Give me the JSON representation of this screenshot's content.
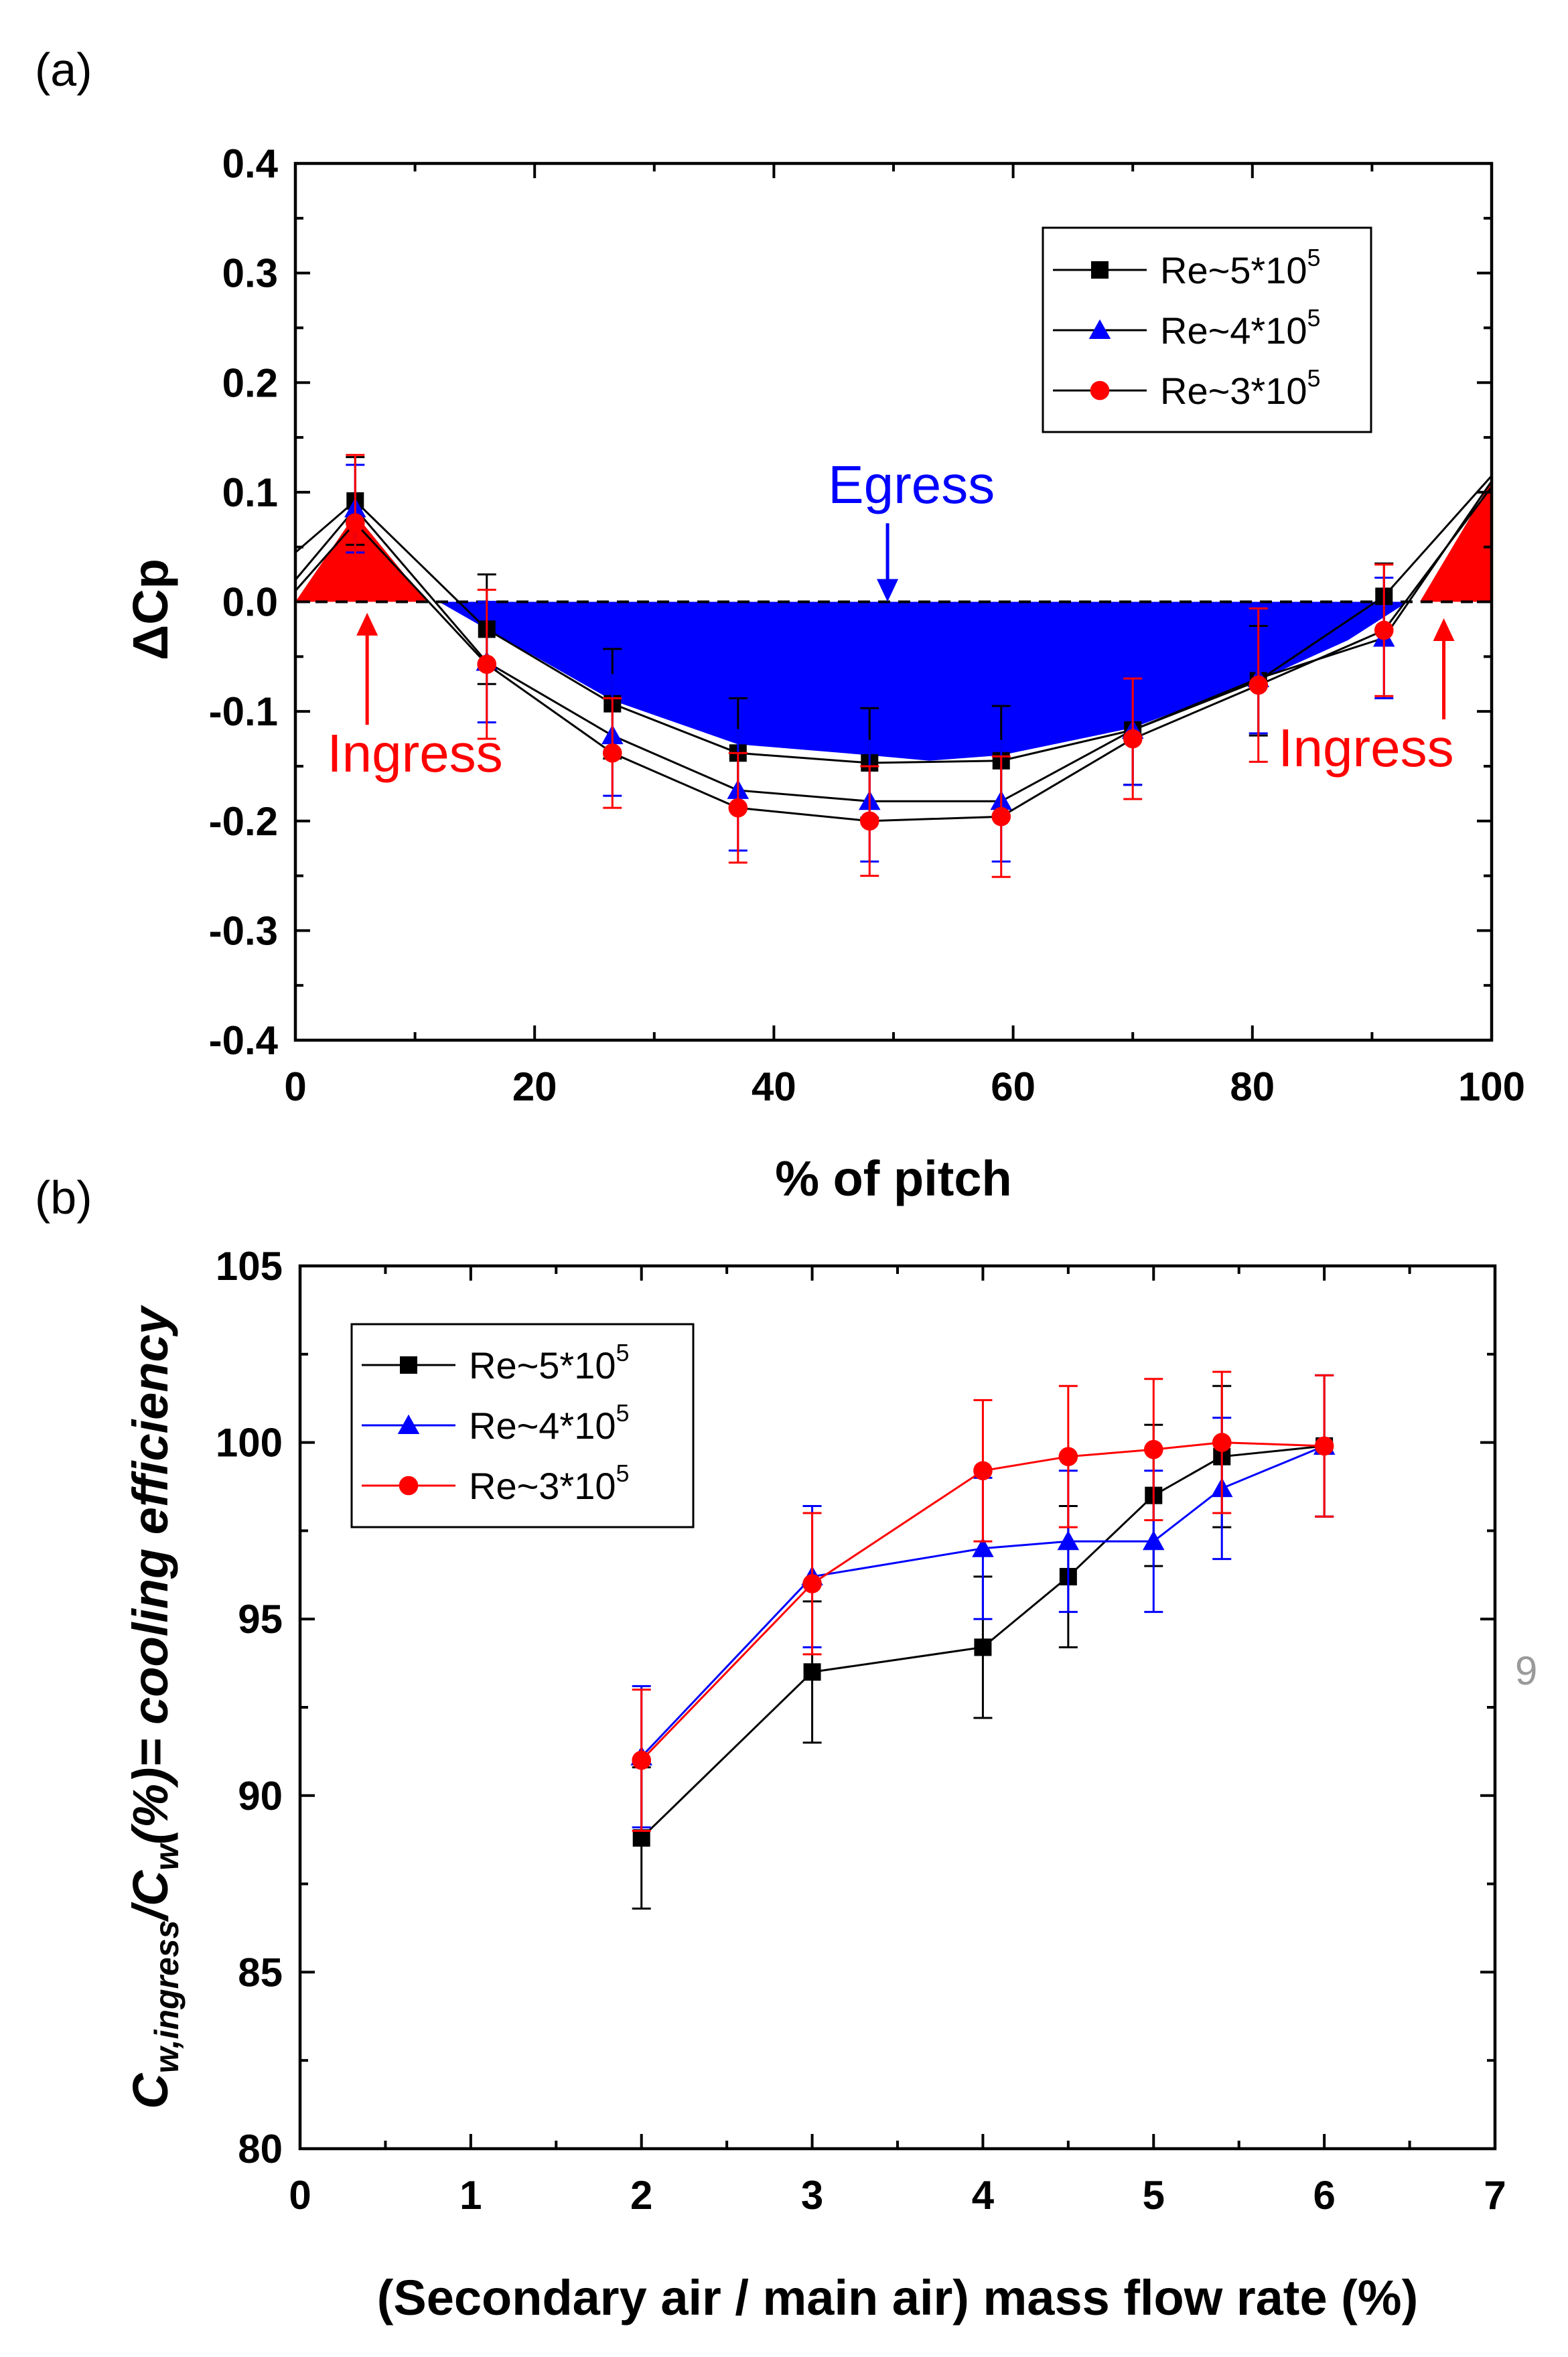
{
  "page_number": "9",
  "chart_data": [
    {
      "panel_label": "(a)",
      "type": "line",
      "xlabel": "% of pitch",
      "ylabel": "ΔCp",
      "xlim": [
        0,
        100
      ],
      "ylim": [
        -0.4,
        0.4
      ],
      "x_ticks": [
        0,
        20,
        40,
        60,
        80,
        100
      ],
      "x_tick_labels": [
        "0",
        "20",
        "40",
        "60",
        "80",
        "100"
      ],
      "y_ticks": [
        -0.4,
        -0.3,
        -0.2,
        -0.1,
        0.0,
        0.1,
        0.2,
        0.3,
        0.4
      ],
      "y_tick_labels": [
        "-0.4",
        "-0.3",
        "-0.2",
        "-0.1",
        "0.0",
        "0.1",
        "0.2",
        "0.3",
        "0.4"
      ],
      "legend_position": "top-right",
      "series": [
        {
          "name": "Re~5*10",
          "sup": "5",
          "marker": "square",
          "color": "#000000",
          "line_color": "#000000",
          "x": [
            5,
            16,
            26.5,
            37,
            48,
            59,
            70,
            80.5,
            91
          ],
          "y": [
            0.092,
            -0.025,
            -0.093,
            -0.138,
            -0.147,
            -0.145,
            -0.117,
            -0.072,
            0.005
          ],
          "err": [
            0.04,
            0.05,
            0.05,
            0.05,
            0.05,
            0.05,
            0.05,
            0.05,
            0.03
          ],
          "start": [
            0,
            0.045
          ],
          "end": [
            100,
            0.115
          ]
        },
        {
          "name": "Re~4*10",
          "sup": "5",
          "marker": "triangle",
          "color": "#0000ff",
          "line_color": "#000000",
          "x": [
            5,
            16,
            26.5,
            37,
            48,
            59,
            70,
            80.5,
            91
          ],
          "y": [
            0.085,
            -0.055,
            -0.122,
            -0.172,
            -0.182,
            -0.182,
            -0.117,
            -0.07,
            -0.033
          ],
          "err": [
            0.04,
            0.055,
            0.055,
            0.055,
            0.055,
            0.055,
            0.05,
            0.05,
            0.055
          ],
          "start": [
            0,
            0.02
          ],
          "end": [
            100,
            0.11
          ]
        },
        {
          "name": "Re~3*10",
          "sup": "5",
          "marker": "circle",
          "color": "#ff0000",
          "line_color": "#000000",
          "x": [
            5,
            16,
            26.5,
            37,
            48,
            59,
            70,
            80.5,
            91
          ],
          "y": [
            0.072,
            -0.057,
            -0.138,
            -0.188,
            -0.2,
            -0.196,
            -0.125,
            -0.076,
            -0.026
          ],
          "err": [
            0.062,
            0.068,
            0.05,
            0.05,
            0.05,
            0.055,
            0.055,
            0.07,
            0.06
          ],
          "start": [
            0,
            0.01
          ],
          "end": [
            100,
            0.105
          ]
        }
      ],
      "ingress_regions": [
        {
          "polygon": [
            [
              0,
              0
            ],
            [
              5,
              0.08
            ],
            [
              11,
              0
            ]
          ],
          "color": "#ff0000"
        },
        {
          "polygon": [
            [
              94,
              0
            ],
            [
              100,
              0.11
            ],
            [
              100,
              0
            ]
          ],
          "color": "#ff0000"
        }
      ],
      "egress_region": {
        "top": [
          [
            12,
            0
          ],
          [
            93,
            0
          ]
        ],
        "bottom": [
          [
            12,
            0
          ],
          [
            16,
            -0.025
          ],
          [
            26.5,
            -0.09
          ],
          [
            37,
            -0.13
          ],
          [
            48,
            -0.14
          ],
          [
            53,
            -0.145
          ],
          [
            59,
            -0.14
          ],
          [
            70,
            -0.115
          ],
          [
            80.5,
            -0.072
          ],
          [
            88,
            -0.035
          ],
          [
            93,
            0
          ]
        ],
        "color": "#0000ff"
      },
      "zero_line": true,
      "annotations": [
        {
          "text": "Egress",
          "color": "#0000ff",
          "arrow_to": [
            49.5,
            0.0
          ],
          "text_at": [
            51.5,
            0.09
          ]
        },
        {
          "text": "Ingress",
          "color": "#ff0000",
          "arrow_to": [
            6,
            -0.01
          ],
          "text_at": [
            10,
            -0.155
          ]
        },
        {
          "text": "Ingress",
          "color": "#ff0000",
          "arrow_to": [
            96,
            -0.015
          ],
          "text_at": [
            89.5,
            -0.15
          ]
        }
      ]
    },
    {
      "panel_label": "(b)",
      "type": "line",
      "xlabel": "(Secondary air / main air) mass flow rate (%)",
      "ylabel_parts": [
        "C",
        "w,ingress",
        "/C",
        "w",
        "(%)= cooling efficiency"
      ],
      "xlim": [
        0,
        7
      ],
      "ylim": [
        80,
        105
      ],
      "x_ticks": [
        0,
        1,
        2,
        3,
        4,
        5,
        6,
        7
      ],
      "x_tick_labels": [
        "0",
        "1",
        "2",
        "3",
        "4",
        "5",
        "6",
        "7"
      ],
      "y_ticks": [
        80,
        85,
        90,
        95,
        100,
        105
      ],
      "y_tick_labels": [
        "80",
        "85",
        "90",
        "95",
        "100",
        "105"
      ],
      "legend_position": "top-left",
      "series": [
        {
          "name": "Re~5*10",
          "sup": "5",
          "marker": "square",
          "color": "#000000",
          "line_color": "#000000",
          "x": [
            2,
            3,
            4,
            4.5,
            5,
            5.4,
            6
          ],
          "y": [
            88.8,
            93.5,
            94.2,
            96.2,
            98.5,
            99.6,
            99.9
          ],
          "err": [
            2.0,
            2.0,
            2.0,
            2.0,
            2.0,
            2.0,
            2.0
          ]
        },
        {
          "name": "Re~4*10",
          "sup": "5",
          "marker": "triangle",
          "color": "#0000ff",
          "line_color": "#0000ff",
          "x": [
            2,
            3,
            4,
            4.5,
            5,
            5.4,
            6
          ],
          "y": [
            91.1,
            96.2,
            97.0,
            97.2,
            97.2,
            98.7,
            99.9
          ],
          "err": [
            2.0,
            2.0,
            2.0,
            2.0,
            2.0,
            2.0,
            2.0
          ]
        },
        {
          "name": "Re~3*10",
          "sup": "5",
          "marker": "circle",
          "color": "#ff0000",
          "line_color": "#ff0000",
          "x": [
            2,
            3,
            4,
            4.5,
            5,
            5.4,
            6
          ],
          "y": [
            91.0,
            96.0,
            99.2,
            99.6,
            99.8,
            100.0,
            99.9
          ],
          "err": [
            2.0,
            2.0,
            2.0,
            2.0,
            2.0,
            2.0,
            2.0
          ]
        }
      ]
    }
  ]
}
